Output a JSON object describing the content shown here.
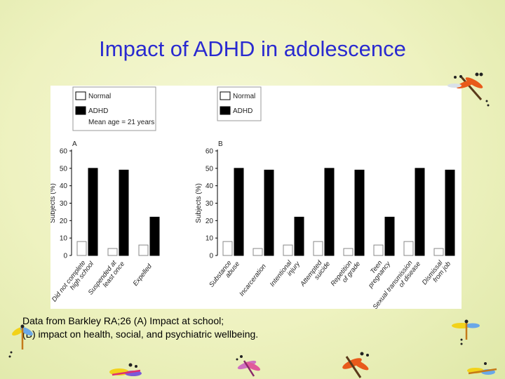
{
  "slide": {
    "title": "Impact of ADHD in adolescence",
    "caption_line1": "Data from Barkley RA;26 (A) Impact at school;",
    "caption_line2": "(B) impact on health, social, and psychiatric wellbeing."
  },
  "colors": {
    "title": "#2a2ad0",
    "normal_bar": "#ffffff",
    "adhd_bar": "#000000"
  },
  "decorations": [
    "dragonfly-icon"
  ],
  "chart_data": [
    {
      "type": "bar",
      "panel": "A",
      "legend": {
        "normal": "Normal",
        "adhd": "ADHD",
        "note": "Mean age = 21 years"
      },
      "ylabel": "Subjects (%)",
      "ylim": [
        0,
        60
      ],
      "yticks": [
        "0",
        "10",
        "20",
        "30",
        "40",
        "50",
        "60"
      ],
      "categories": [
        "Did not complete high school",
        "Suspended at least once",
        "Expelled"
      ],
      "series": [
        {
          "name": "Normal",
          "values": [
            8,
            4,
            6
          ]
        },
        {
          "name": "ADHD",
          "values": [
            50,
            49,
            22
          ]
        }
      ]
    },
    {
      "type": "bar",
      "panel": "B",
      "legend": {
        "normal": "Normal",
        "adhd": "ADHD"
      },
      "ylabel": "Subjects (%)",
      "ylim": [
        0,
        60
      ],
      "yticks": [
        "0",
        "10",
        "20",
        "30",
        "40",
        "50",
        "60"
      ],
      "categories": [
        "Substance abuse",
        "Incarceration",
        "Intentional injury",
        "Attempted suicide",
        "Repetition of grade",
        "Teen pregnancy",
        "Sexual transmission of disease",
        "Dismissal from job"
      ],
      "series": [
        {
          "name": "Normal",
          "values": [
            8,
            4,
            6,
            8,
            4,
            6,
            8,
            4
          ]
        },
        {
          "name": "ADHD",
          "values": [
            50,
            49,
            22,
            50,
            49,
            22,
            50,
            49
          ]
        }
      ]
    }
  ]
}
